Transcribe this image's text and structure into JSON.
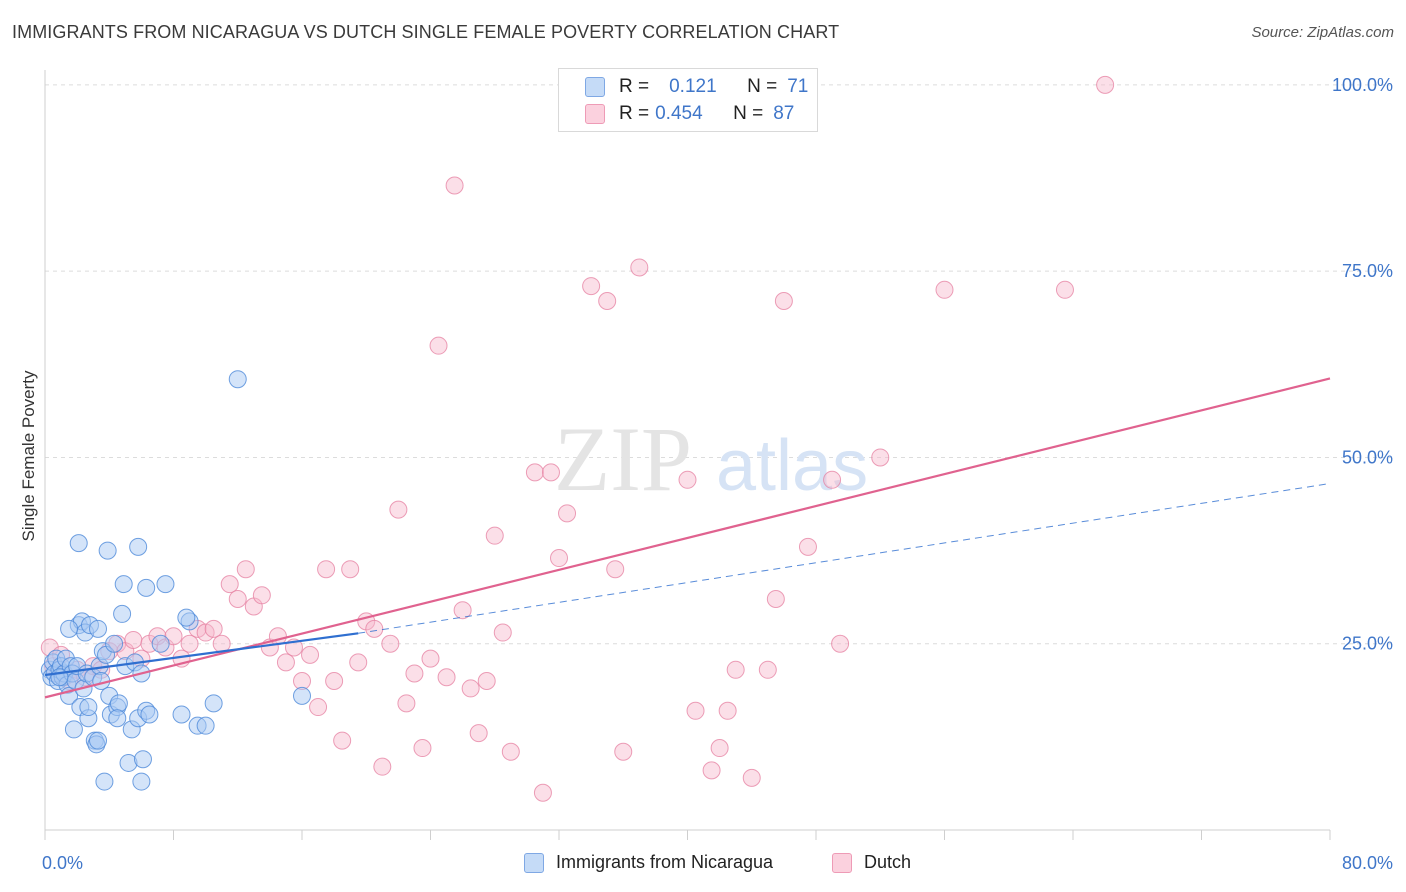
{
  "header": {
    "title": "IMMIGRANTS FROM NICARAGUA VS DUTCH SINGLE FEMALE POVERTY CORRELATION CHART",
    "source": "Source: ZipAtlas.com"
  },
  "legend": {
    "r_label": "R =",
    "n_label": "N =",
    "rows": [
      {
        "r": "0.121",
        "n": "71",
        "color": "#a9c9f3"
      },
      {
        "r": "0.454",
        "n": "87",
        "color": "#f6b8cb"
      }
    ]
  },
  "bottom_legend": [
    {
      "label": "Immigrants from Nicaragua",
      "color": "#a9c9f3"
    },
    {
      "label": "Dutch",
      "color": "#f6b8cb"
    }
  ],
  "colors": {
    "blue_fill": "#a9c9f3",
    "blue_stroke": "#4d8ad9",
    "blue_line": "#2f6fd0",
    "pink_fill": "#f6b8cb",
    "pink_stroke": "#e57fa0",
    "pink_line": "#e0628f",
    "grid": "#dcdcdc",
    "tick_text": "#3f76c9"
  },
  "watermark": {
    "zip": "ZIP",
    "atlas": "atlas"
  },
  "chart_data": {
    "type": "scatter",
    "title": "IMMIGRANTS FROM NICARAGUA VS DUTCH SINGLE FEMALE POVERTY CORRELATION CHART",
    "xlabel": "",
    "ylabel": "Single Female Poverty",
    "xlim": [
      0,
      80
    ],
    "ylim": [
      0,
      102
    ],
    "x_tick_labels": [
      "0.0%",
      "80.0%"
    ],
    "y_ticks": [
      25,
      50,
      75,
      100
    ],
    "y_tick_labels": [
      "25.0%",
      "50.0%",
      "75.0%",
      "100.0%"
    ],
    "grid": true,
    "legend_position": "top-center",
    "series": [
      {
        "name": "Immigrants from Nicaragua",
        "r": 0.121,
        "n": 71,
        "trend_solid": [
          [
            0,
            20.8
          ],
          [
            19.5,
            26.4
          ]
        ],
        "trend_dashed": [
          [
            19.5,
            26.4
          ],
          [
            80,
            46.5
          ]
        ],
        "points": [
          [
            0.3,
            21.5
          ],
          [
            0.4,
            20.5
          ],
          [
            0.5,
            22.5
          ],
          [
            0.6,
            21.0
          ],
          [
            0.7,
            23.0
          ],
          [
            0.8,
            20.0
          ],
          [
            0.9,
            21.5
          ],
          [
            1.0,
            22.0
          ],
          [
            1.1,
            20.5
          ],
          [
            1.2,
            21.0
          ],
          [
            1.3,
            23.0
          ],
          [
            1.4,
            19.5
          ],
          [
            1.5,
            18.0
          ],
          [
            1.6,
            22.0
          ],
          [
            1.7,
            21.0
          ],
          [
            1.8,
            13.5
          ],
          [
            1.9,
            20.0
          ],
          [
            2.0,
            22.0
          ],
          [
            2.1,
            27.5
          ],
          [
            2.2,
            16.5
          ],
          [
            2.3,
            28.0
          ],
          [
            2.4,
            19.0
          ],
          [
            2.5,
            26.5
          ],
          [
            2.6,
            21.0
          ],
          [
            2.7,
            15.0
          ],
          [
            2.8,
            27.5
          ],
          [
            3.0,
            20.5
          ],
          [
            3.1,
            12.0
          ],
          [
            3.2,
            11.5
          ],
          [
            3.3,
            27.0
          ],
          [
            3.4,
            22.0
          ],
          [
            3.5,
            20.0
          ],
          [
            3.6,
            24.0
          ],
          [
            3.7,
            6.5
          ],
          [
            3.8,
            23.5
          ],
          [
            4.0,
            18.0
          ],
          [
            4.1,
            15.5
          ],
          [
            4.3,
            25.0
          ],
          [
            4.5,
            16.5
          ],
          [
            4.6,
            17.0
          ],
          [
            4.8,
            29.0
          ],
          [
            4.9,
            33.0
          ],
          [
            5.0,
            22.0
          ],
          [
            5.2,
            9.0
          ],
          [
            5.4,
            13.5
          ],
          [
            5.6,
            22.5
          ],
          [
            5.8,
            15.0
          ],
          [
            6.0,
            6.5
          ],
          [
            6.1,
            9.5
          ],
          [
            6.3,
            16.0
          ],
          [
            6.5,
            15.5
          ],
          [
            2.1,
            38.5
          ],
          [
            3.9,
            37.5
          ],
          [
            5.8,
            38.0
          ],
          [
            6.3,
            32.5
          ],
          [
            7.5,
            33.0
          ],
          [
            8.5,
            15.5
          ],
          [
            9.0,
            28.0
          ],
          [
            9.5,
            14.0
          ],
          [
            10.0,
            14.0
          ],
          [
            10.5,
            17.0
          ],
          [
            12.0,
            60.5
          ],
          [
            16.0,
            18.0
          ],
          [
            6.0,
            21.0
          ],
          [
            7.2,
            25.0
          ],
          [
            8.8,
            28.5
          ],
          [
            1.5,
            27.0
          ],
          [
            2.7,
            16.5
          ],
          [
            0.9,
            20.5
          ],
          [
            3.3,
            12.0
          ],
          [
            4.5,
            15.0
          ]
        ]
      },
      {
        "name": "Dutch",
        "r": 0.454,
        "n": 87,
        "trend_solid": [
          [
            0,
            17.8
          ],
          [
            80,
            60.6
          ]
        ],
        "points": [
          [
            0.3,
            24.5
          ],
          [
            0.5,
            22.0
          ],
          [
            0.8,
            21.0
          ],
          [
            1.0,
            23.5
          ],
          [
            1.2,
            20.5
          ],
          [
            1.5,
            20.0
          ],
          [
            2.0,
            21.5
          ],
          [
            2.5,
            20.5
          ],
          [
            3.0,
            22.0
          ],
          [
            3.5,
            21.5
          ],
          [
            4.0,
            24.0
          ],
          [
            4.5,
            25.0
          ],
          [
            5.0,
            24.0
          ],
          [
            5.5,
            25.5
          ],
          [
            6.0,
            23.0
          ],
          [
            6.5,
            25.0
          ],
          [
            7.0,
            26.0
          ],
          [
            7.5,
            24.5
          ],
          [
            8.0,
            26.0
          ],
          [
            8.5,
            23.0
          ],
          [
            9.0,
            25.0
          ],
          [
            9.5,
            27.0
          ],
          [
            10.0,
            26.5
          ],
          [
            10.5,
            27.0
          ],
          [
            11.0,
            25.0
          ],
          [
            11.5,
            33.0
          ],
          [
            12.0,
            31.0
          ],
          [
            12.5,
            35.0
          ],
          [
            13.0,
            30.0
          ],
          [
            13.5,
            31.5
          ],
          [
            14.0,
            24.5
          ],
          [
            14.5,
            26.0
          ],
          [
            15.0,
            22.5
          ],
          [
            15.5,
            24.5
          ],
          [
            16.0,
            20.0
          ],
          [
            16.5,
            23.5
          ],
          [
            17.0,
            16.5
          ],
          [
            17.5,
            35.0
          ],
          [
            18.0,
            20.0
          ],
          [
            18.5,
            12.0
          ],
          [
            19.0,
            35.0
          ],
          [
            19.5,
            22.5
          ],
          [
            20.0,
            28.0
          ],
          [
            20.5,
            27.0
          ],
          [
            21.0,
            8.5
          ],
          [
            21.5,
            25.0
          ],
          [
            22.0,
            43.0
          ],
          [
            22.5,
            17.0
          ],
          [
            23.0,
            21.0
          ],
          [
            23.5,
            11.0
          ],
          [
            24.0,
            23.0
          ],
          [
            24.5,
            65.0
          ],
          [
            25.0,
            20.5
          ],
          [
            25.5,
            86.5
          ],
          [
            26.0,
            29.5
          ],
          [
            26.5,
            19.0
          ],
          [
            27.0,
            13.0
          ],
          [
            27.5,
            20.0
          ],
          [
            28.0,
            39.5
          ],
          [
            28.5,
            26.5
          ],
          [
            29.0,
            10.5
          ],
          [
            30.5,
            48.0
          ],
          [
            31.0,
            5.0
          ],
          [
            31.5,
            48.0
          ],
          [
            32.0,
            36.5
          ],
          [
            32.5,
            42.5
          ],
          [
            34.0,
            73.0
          ],
          [
            35.0,
            71.0
          ],
          [
            35.5,
            35.0
          ],
          [
            36.0,
            10.5
          ],
          [
            37.0,
            75.5
          ],
          [
            40.0,
            47.0
          ],
          [
            40.5,
            16.0
          ],
          [
            41.5,
            8.0
          ],
          [
            42.0,
            11.0
          ],
          [
            42.5,
            16.0
          ],
          [
            43.0,
            21.5
          ],
          [
            44.0,
            7.0
          ],
          [
            45.0,
            21.5
          ],
          [
            45.5,
            31.0
          ],
          [
            46.0,
            71.0
          ],
          [
            47.5,
            38.0
          ],
          [
            49.0,
            47.0
          ],
          [
            49.5,
            25.0
          ],
          [
            52.0,
            50.0
          ],
          [
            56.0,
            72.5
          ],
          [
            63.5,
            72.5
          ],
          [
            66.0,
            100.0
          ]
        ]
      }
    ]
  }
}
